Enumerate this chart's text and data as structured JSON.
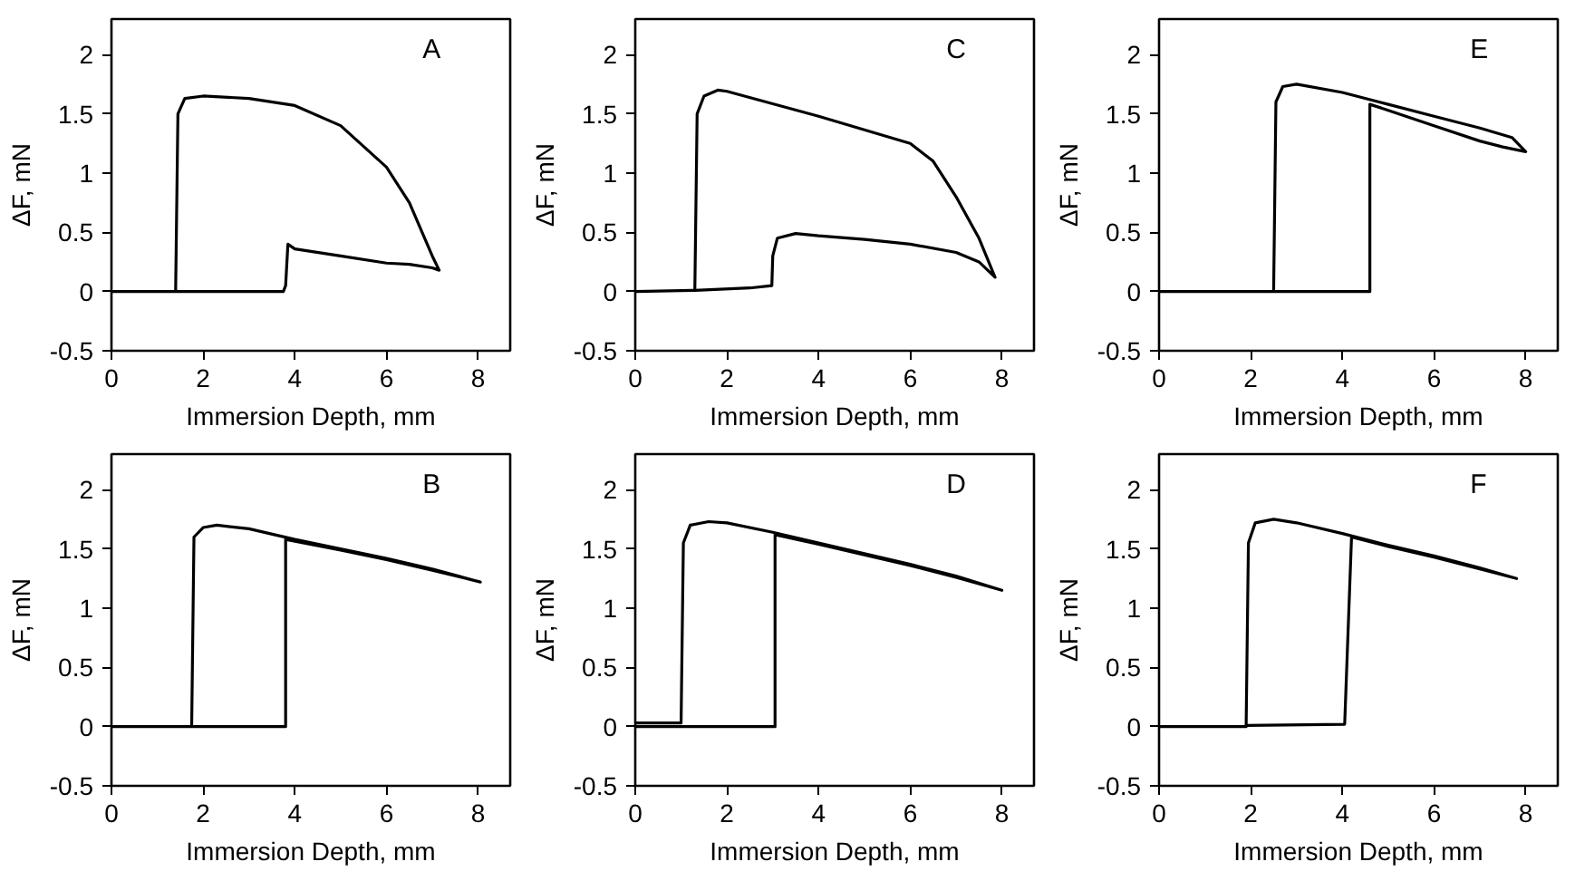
{
  "chart_data": [
    {
      "type": "line",
      "annotations": [
        "A"
      ],
      "xlabel": "Immersion Depth, mm",
      "ylabel": "ΔF, mN",
      "xlim": [
        0,
        8.7
      ],
      "ylim": [
        -0.5,
        2.3
      ],
      "xticks": [
        0,
        2,
        4,
        6,
        8
      ],
      "yticks": [
        -0.5,
        0,
        0.5,
        1,
        1.5,
        2
      ],
      "grid": false,
      "series": [
        {
          "color": "#000000",
          "x": [
            0,
            1.4,
            1.45,
            1.6,
            2,
            3,
            4,
            5,
            6,
            6.5,
            7,
            7.15,
            7,
            6.5,
            6,
            5,
            4,
            3.85,
            3.8,
            3.75,
            1.4
          ],
          "values": [
            0,
            0,
            1.5,
            1.63,
            1.65,
            1.63,
            1.57,
            1.4,
            1.05,
            0.75,
            0.3,
            0.18,
            0.2,
            0.23,
            0.24,
            0.3,
            0.36,
            0.4,
            0.05,
            0,
            0
          ]
        }
      ]
    },
    {
      "type": "line",
      "annotations": [
        "C"
      ],
      "xlabel": "Immersion Depth, mm",
      "ylabel": "ΔF, mN",
      "xlim": [
        0,
        8.7
      ],
      "ylim": [
        -0.5,
        2.3
      ],
      "xticks": [
        0,
        2,
        4,
        6,
        8
      ],
      "yticks": [
        -0.5,
        0,
        0.5,
        1,
        1.5,
        2
      ],
      "grid": false,
      "series": [
        {
          "color": "#000000",
          "x": [
            0,
            1.3,
            1.35,
            1.5,
            1.8,
            2,
            4,
            6,
            6.5,
            7,
            7.5,
            7.85,
            7.5,
            7,
            6,
            5,
            4,
            3.5,
            3.1,
            3.0,
            2.98,
            2.5,
            1.3
          ],
          "values": [
            0,
            0.01,
            1.5,
            1.65,
            1.7,
            1.69,
            1.48,
            1.25,
            1.1,
            0.8,
            0.45,
            0.12,
            0.25,
            0.33,
            0.4,
            0.44,
            0.47,
            0.49,
            0.45,
            0.3,
            0.05,
            0.03,
            0.01
          ]
        }
      ]
    },
    {
      "type": "line",
      "annotations": [
        "E"
      ],
      "xlabel": "Immersion Depth, mm",
      "ylabel": "ΔF, mN",
      "xlim": [
        0,
        8.7
      ],
      "ylim": [
        -0.5,
        2.3
      ],
      "xticks": [
        0,
        2,
        4,
        6,
        8
      ],
      "yticks": [
        -0.5,
        0,
        0.5,
        1,
        1.5,
        2
      ],
      "grid": false,
      "series": [
        {
          "color": "#000000",
          "x": [
            0,
            2.5,
            2.55,
            2.7,
            3,
            4,
            5,
            6,
            7,
            7.7,
            8,
            7.5,
            7,
            6,
            5,
            4.6,
            4.6,
            2.5
          ],
          "values": [
            0,
            0,
            1.6,
            1.73,
            1.75,
            1.68,
            1.58,
            1.48,
            1.38,
            1.3,
            1.18,
            1.22,
            1.27,
            1.4,
            1.53,
            1.58,
            0,
            0
          ]
        }
      ]
    },
    {
      "type": "line",
      "annotations": [
        "B"
      ],
      "xlabel": "Immersion Depth, mm",
      "ylabel": "ΔF, mN",
      "xlim": [
        0,
        8.7
      ],
      "ylim": [
        -0.5,
        2.3
      ],
      "xticks": [
        0,
        2,
        4,
        6,
        8
      ],
      "yticks": [
        -0.5,
        0,
        0.5,
        1,
        1.5,
        2
      ],
      "grid": false,
      "series": [
        {
          "color": "#000000",
          "x": [
            0,
            1.75,
            1.8,
            2,
            2.3,
            3,
            4,
            5,
            6,
            7,
            8.05,
            7,
            6,
            5,
            3.8,
            3.8,
            1.75
          ],
          "values": [
            0,
            0,
            1.6,
            1.68,
            1.7,
            1.67,
            1.58,
            1.5,
            1.42,
            1.33,
            1.22,
            1.32,
            1.41,
            1.49,
            1.58,
            0,
            0
          ]
        }
      ]
    },
    {
      "type": "line",
      "annotations": [
        "D"
      ],
      "xlabel": "Immersion Depth, mm",
      "ylabel": "ΔF, mN",
      "xlim": [
        0,
        8.7
      ],
      "ylim": [
        -0.5,
        2.3
      ],
      "xticks": [
        0,
        2,
        4,
        6,
        8
      ],
      "yticks": [
        -0.5,
        0,
        0.5,
        1,
        1.5,
        2
      ],
      "grid": false,
      "series": [
        {
          "color": "#000000",
          "x": [
            0,
            1,
            1.05,
            1.2,
            1.6,
            2,
            3,
            4,
            5,
            6,
            7,
            8,
            7,
            6,
            5,
            4,
            3.05,
            3.05,
            0
          ],
          "values": [
            0.03,
            0.03,
            1.55,
            1.7,
            1.73,
            1.72,
            1.64,
            1.55,
            1.46,
            1.37,
            1.27,
            1.15,
            1.26,
            1.36,
            1.45,
            1.54,
            1.62,
            0,
            0
          ]
        }
      ]
    },
    {
      "type": "line",
      "annotations": [
        "F"
      ],
      "xlabel": "Immersion Depth, mm",
      "ylabel": "ΔF, mN",
      "xlim": [
        0,
        8.7
      ],
      "ylim": [
        -0.5,
        2.3
      ],
      "xticks": [
        0,
        2,
        4,
        6,
        8
      ],
      "yticks": [
        -0.5,
        0,
        0.5,
        1,
        1.5,
        2
      ],
      "grid": false,
      "series": [
        {
          "color": "#000000",
          "x": [
            0,
            1.9,
            1.95,
            2.1,
            2.5,
            3,
            4,
            5,
            6,
            7,
            7.8,
            7,
            6,
            5,
            4.2,
            4.05,
            1.9
          ],
          "values": [
            0,
            0,
            1.55,
            1.72,
            1.75,
            1.72,
            1.63,
            1.53,
            1.44,
            1.34,
            1.25,
            1.33,
            1.43,
            1.52,
            1.6,
            0.02,
            0.01
          ]
        }
      ]
    }
  ]
}
